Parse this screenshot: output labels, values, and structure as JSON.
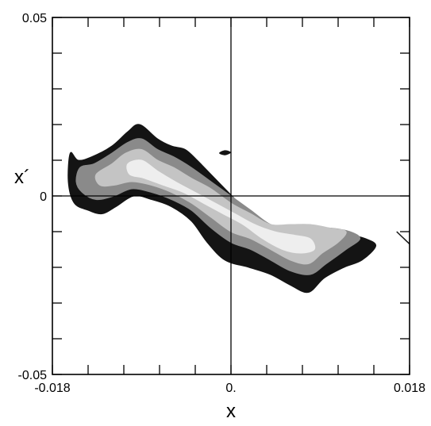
{
  "chart_data": {
    "type": "heatmap",
    "title": "",
    "xlabel": "x",
    "ylabel": "x´",
    "xlim": [
      -0.018,
      0.018
    ],
    "ylim": [
      -0.05,
      0.05
    ],
    "x_tick_labels": [
      "-0.018",
      "0.",
      "0.018"
    ],
    "y_tick_labels": [
      "0.05",
      "0",
      "-0.05"
    ],
    "x_tick_values": [
      -0.018,
      0,
      0.018
    ],
    "y_tick_values": [
      0.05,
      0,
      -0.05
    ],
    "x_minor_ticks": [
      -0.0144,
      -0.0108,
      -0.0072,
      -0.0036,
      0.0036,
      0.0072,
      0.0108,
      0.0144
    ],
    "y_minor_ticks": [
      0.04,
      0.03,
      0.02,
      0.01,
      -0.01,
      -0.02,
      -0.03,
      -0.04
    ],
    "crosshair_lines": {
      "x": 0,
      "y": 0
    },
    "density_levels": [
      {
        "level": 1,
        "color": "#141414",
        "outline": [
          [
            -0.0162,
            0.012
          ],
          [
            -0.0154,
            0.01
          ],
          [
            -0.014,
            0.011
          ],
          [
            -0.012,
            0.014
          ],
          [
            -0.0104,
            0.018
          ],
          [
            -0.0092,
            0.02
          ],
          [
            -0.0074,
            0.016
          ],
          [
            -0.006,
            0.014
          ],
          [
            -0.0046,
            0.013
          ],
          [
            -0.0034,
            0.01
          ],
          [
            -0.002,
            0.006
          ],
          [
            -0.0006,
            0.002
          ],
          [
            0.0008,
            -0.002
          ],
          [
            0.0022,
            -0.006
          ],
          [
            0.004,
            -0.01
          ],
          [
            0.006,
            -0.01
          ],
          [
            0.008,
            -0.011
          ],
          [
            0.01,
            -0.011
          ],
          [
            0.012,
            -0.011
          ],
          [
            0.0136,
            -0.012
          ],
          [
            0.0146,
            -0.014
          ],
          [
            0.0132,
            -0.018
          ],
          [
            0.0114,
            -0.02
          ],
          [
            0.0094,
            -0.023
          ],
          [
            0.0078,
            -0.027
          ],
          [
            0.006,
            -0.025
          ],
          [
            0.004,
            -0.022
          ],
          [
            0.0018,
            -0.02
          ],
          [
            -0.0006,
            -0.018
          ],
          [
            -0.0024,
            -0.013
          ],
          [
            -0.004,
            -0.007
          ],
          [
            -0.006,
            -0.003
          ],
          [
            -0.008,
            -0.001
          ],
          [
            -0.0098,
            0.0
          ],
          [
            -0.0116,
            -0.003
          ],
          [
            -0.013,
            -0.005
          ],
          [
            -0.0144,
            -0.004
          ],
          [
            -0.0158,
            -0.002
          ],
          [
            -0.0164,
            0.004
          ]
        ]
      },
      {
        "level": 2,
        "color": "#8a8a8a",
        "outline": [
          [
            -0.0152,
            0.008
          ],
          [
            -0.0138,
            0.009
          ],
          [
            -0.012,
            0.012
          ],
          [
            -0.0104,
            0.015
          ],
          [
            -0.009,
            0.016
          ],
          [
            -0.0074,
            0.013
          ],
          [
            -0.0058,
            0.011
          ],
          [
            -0.004,
            0.008
          ],
          [
            -0.002,
            0.004
          ],
          [
            0.0,
            0.0
          ],
          [
            0.002,
            -0.004
          ],
          [
            0.004,
            -0.008
          ],
          [
            0.006,
            -0.009
          ],
          [
            0.008,
            -0.009
          ],
          [
            0.01,
            -0.009
          ],
          [
            0.012,
            -0.01
          ],
          [
            0.013,
            -0.012
          ],
          [
            0.0116,
            -0.015
          ],
          [
            0.0096,
            -0.019
          ],
          [
            0.008,
            -0.022
          ],
          [
            0.006,
            -0.021
          ],
          [
            0.004,
            -0.018
          ],
          [
            0.002,
            -0.015
          ],
          [
            0.0,
            -0.013
          ],
          [
            -0.002,
            -0.009
          ],
          [
            -0.004,
            -0.004
          ],
          [
            -0.006,
            -0.001
          ],
          [
            -0.008,
            0.001
          ],
          [
            -0.01,
            0.002
          ],
          [
            -0.0118,
            0.0
          ],
          [
            -0.0136,
            -0.001
          ],
          [
            -0.015,
            0.001
          ],
          [
            -0.0156,
            0.004
          ]
        ]
      },
      {
        "level": 3,
        "color": "#c4c4c4",
        "outline": [
          [
            -0.0136,
            0.006
          ],
          [
            -0.012,
            0.009
          ],
          [
            -0.0106,
            0.012
          ],
          [
            -0.009,
            0.013
          ],
          [
            -0.0074,
            0.01
          ],
          [
            -0.0058,
            0.008
          ],
          [
            -0.004,
            0.005
          ],
          [
            -0.002,
            0.002
          ],
          [
            0.0,
            -0.002
          ],
          [
            0.002,
            -0.005
          ],
          [
            0.004,
            -0.008
          ],
          [
            0.006,
            -0.008
          ],
          [
            0.008,
            -0.008
          ],
          [
            0.01,
            -0.009
          ],
          [
            0.0116,
            -0.01
          ],
          [
            0.0108,
            -0.013
          ],
          [
            0.0092,
            -0.016
          ],
          [
            0.0078,
            -0.019
          ],
          [
            0.006,
            -0.018
          ],
          [
            0.004,
            -0.015
          ],
          [
            0.002,
            -0.012
          ],
          [
            0.0,
            -0.01
          ],
          [
            -0.002,
            -0.006
          ],
          [
            -0.004,
            -0.002
          ],
          [
            -0.006,
            0.001
          ],
          [
            -0.008,
            0.003
          ],
          [
            -0.01,
            0.004
          ],
          [
            -0.0118,
            0.003
          ],
          [
            -0.0132,
            0.003
          ]
        ]
      },
      {
        "level": 4,
        "color": "#eeeeee",
        "outline": [
          [
            -0.0104,
            0.009
          ],
          [
            -0.009,
            0.01
          ],
          [
            -0.0074,
            0.007
          ],
          [
            -0.0056,
            0.004
          ],
          [
            -0.0036,
            0.001
          ],
          [
            -0.0016,
            -0.002
          ],
          [
            0.0004,
            -0.005
          ],
          [
            0.0024,
            -0.008
          ],
          [
            0.0044,
            -0.01
          ],
          [
            0.0064,
            -0.011
          ],
          [
            0.008,
            -0.012
          ],
          [
            0.0084,
            -0.015
          ],
          [
            0.007,
            -0.016
          ],
          [
            0.0052,
            -0.015
          ],
          [
            0.0032,
            -0.012
          ],
          [
            0.0012,
            -0.008
          ],
          [
            -0.0008,
            -0.005
          ],
          [
            -0.0028,
            -0.002
          ],
          [
            -0.0048,
            0.001
          ],
          [
            -0.0068,
            0.003
          ],
          [
            -0.0088,
            0.005
          ],
          [
            -0.0102,
            0.006
          ]
        ]
      }
    ],
    "detached_features": [
      {
        "color": "#141414",
        "outline": [
          [
            -0.0012,
            0.012
          ],
          [
            -0.0006,
            0.0128
          ],
          [
            0.0,
            0.0122
          ],
          [
            -0.0006,
            0.0114
          ]
        ]
      }
    ],
    "stray_marks": [
      {
        "color": "#141414",
        "segment": [
          [
            0.0167,
            -0.01
          ],
          [
            0.0182,
            -0.014
          ]
        ]
      }
    ]
  }
}
